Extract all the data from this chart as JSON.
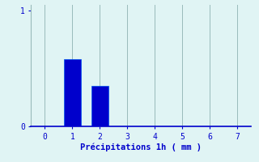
{
  "categories": [
    0,
    1,
    2,
    3,
    4,
    5,
    6,
    7
  ],
  "bar_values": [
    0,
    0.58,
    0.35,
    0,
    0,
    0,
    0,
    0
  ],
  "bar_color": "#0000cc",
  "bar_edge_color": "#0055ee",
  "background_color": "#e0f4f4",
  "grid_color": "#99bbbb",
  "text_color": "#0000cc",
  "xlabel": "Précipitations 1h ( mm )",
  "xlim": [
    -0.5,
    7.5
  ],
  "ylim": [
    0,
    1.05
  ],
  "yticks": [
    0,
    1
  ],
  "xticks": [
    0,
    1,
    2,
    3,
    4,
    5,
    6,
    7
  ],
  "label_fontsize": 7.5,
  "tick_fontsize": 7,
  "bar_width": 0.6
}
